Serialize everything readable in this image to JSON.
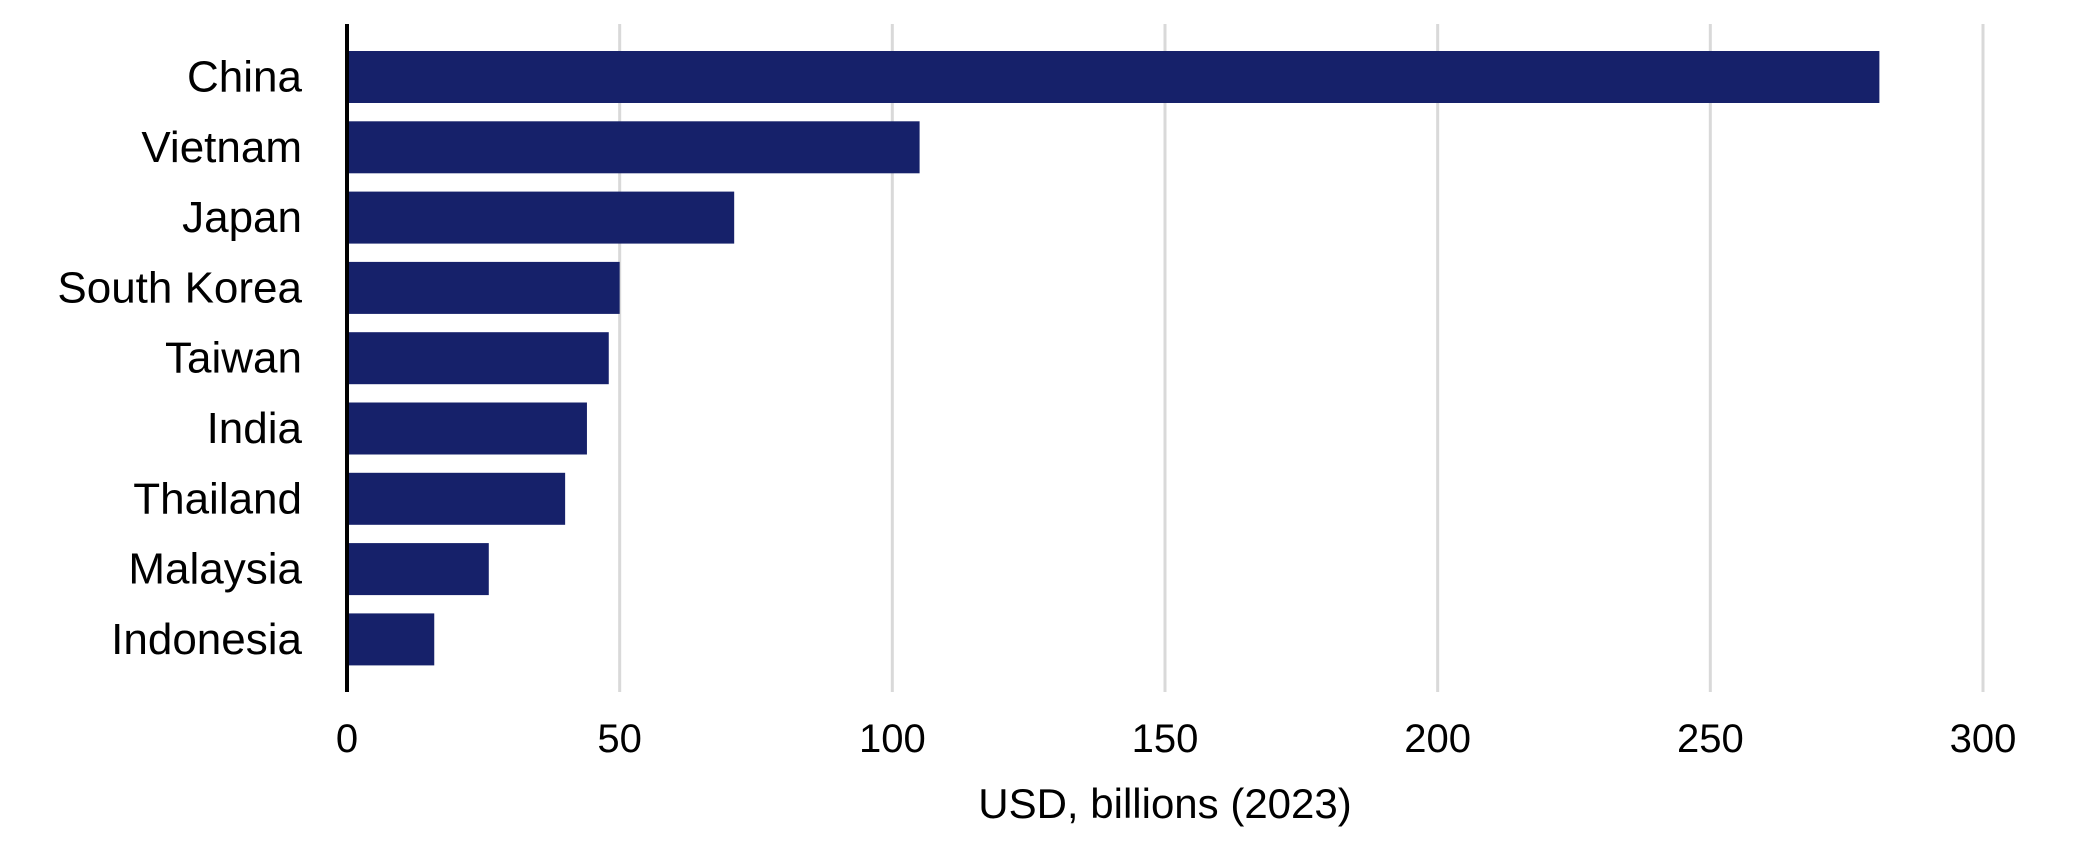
{
  "chart_data": {
    "type": "bar",
    "orientation": "horizontal",
    "categories": [
      "China",
      "Vietnam",
      "Japan",
      "South Korea",
      "Taiwan",
      "India",
      "Thailand",
      "Malaysia",
      "Indonesia"
    ],
    "values": [
      281,
      105,
      71,
      50,
      48,
      44,
      40,
      26,
      16
    ],
    "title": "",
    "xlabel": "USD, billions (2023)",
    "ylabel": "",
    "xlim": [
      0,
      300
    ],
    "xticks": [
      "0",
      "50",
      "100",
      "150",
      "200",
      "250",
      "300"
    ],
    "grid": "vertical",
    "legend": "none",
    "colors": {
      "bar": "#16216a",
      "grid": "#d9d9d9",
      "axis": "#000000"
    }
  }
}
